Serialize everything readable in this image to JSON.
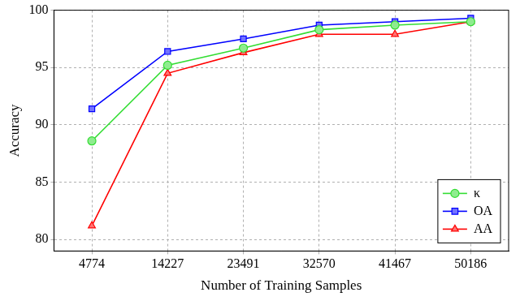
{
  "chart_data": {
    "type": "line",
    "x_label": "Number of Training Samples",
    "y_label": "Accuracy",
    "categories": [
      "4774",
      "14227",
      "23491",
      "32570",
      "41467",
      "50186"
    ],
    "series": [
      {
        "name": "κ",
        "color": "#33dd33",
        "marker": "circle",
        "values": [
          88.6,
          95.2,
          96.7,
          98.3,
          98.7,
          99.0
        ]
      },
      {
        "name": "OA",
        "color": "#0000ff",
        "marker": "square",
        "values": [
          91.4,
          96.4,
          97.5,
          98.7,
          99.0,
          99.3
        ]
      },
      {
        "name": "AA",
        "color": "#ff0000",
        "marker": "triangle",
        "values": [
          81.2,
          94.5,
          96.3,
          97.9,
          97.9,
          99.0
        ]
      }
    ],
    "ylim": [
      79,
      100
    ],
    "yticks": [
      80,
      85,
      90,
      95,
      100
    ],
    "grid": true,
    "legend": "bottom-right"
  }
}
